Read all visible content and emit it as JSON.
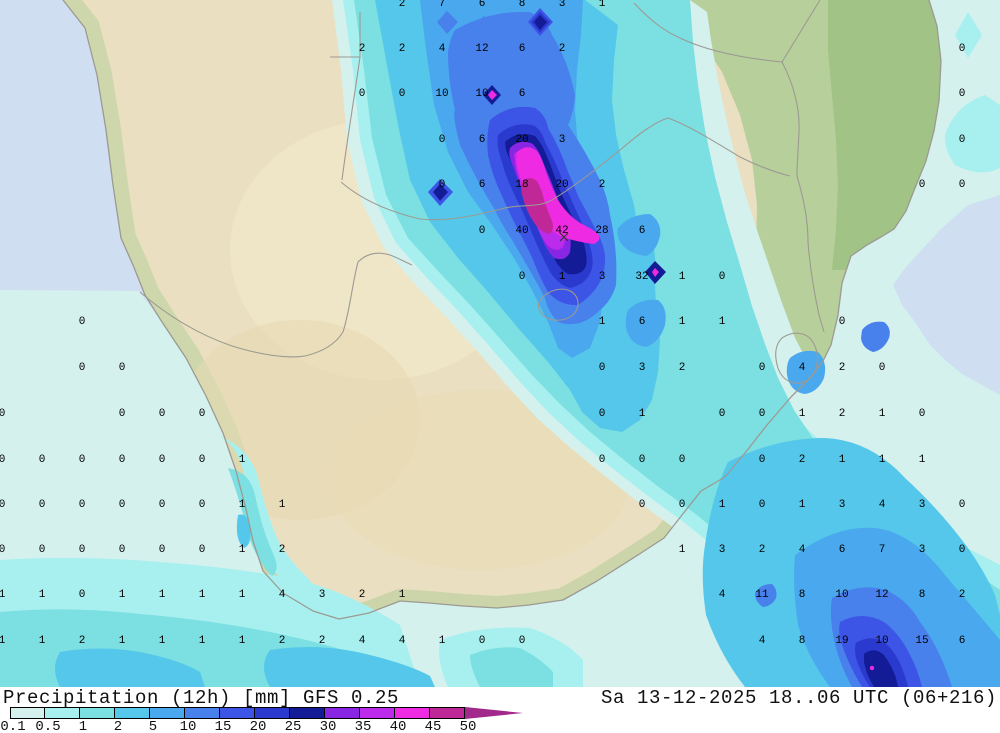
{
  "header": {
    "title": "Precipitation (12h) [mm] GFS 0.25",
    "datetime": "Sa 13-12-2025 18..06 UTC (06+216)"
  },
  "legend": {
    "unit": "mm",
    "labels": [
      "0.1",
      "0.5",
      "1",
      "2",
      "5",
      "10",
      "15",
      "20",
      "25",
      "30",
      "35",
      "40",
      "45",
      "50"
    ],
    "colors": [
      "#d4f1ee",
      "#a8f0ef",
      "#7cdfe1",
      "#55c7ea",
      "#4aa9ee",
      "#4880ec",
      "#3c55e6",
      "#2a3ace",
      "#131c96",
      "#8826e4",
      "#bc2aec",
      "#ee2ae2",
      "#bf2896"
    ],
    "overflow_color": "#a2288c"
  },
  "map": {
    "colors": {
      "ocean": "#cfdff1",
      "land": "#ebdfc1",
      "land_light": "#f2e9ce",
      "land_tan2": "#e3d5ad",
      "green": "#b7cf9b",
      "green_dark": "#9fc183",
      "border": "#9c9a92",
      "value_text": "#000000"
    },
    "values": [
      [
        402,
        2,
        "2"
      ],
      [
        442,
        2,
        "7"
      ],
      [
        482,
        2,
        "6"
      ],
      [
        522,
        2,
        "8"
      ],
      [
        562,
        2,
        "3"
      ],
      [
        602,
        2,
        "1"
      ],
      [
        362,
        47,
        "2"
      ],
      [
        402,
        47,
        "2"
      ],
      [
        442,
        47,
        "4"
      ],
      [
        482,
        47,
        "12"
      ],
      [
        522,
        47,
        "6"
      ],
      [
        562,
        47,
        "2"
      ],
      [
        962,
        47,
        "0"
      ],
      [
        362,
        92,
        "0"
      ],
      [
        402,
        92,
        "0"
      ],
      [
        442,
        92,
        "10"
      ],
      [
        482,
        92,
        "10"
      ],
      [
        522,
        92,
        "6"
      ],
      [
        962,
        92,
        "0"
      ],
      [
        442,
        138,
        "0"
      ],
      [
        482,
        138,
        "6"
      ],
      [
        522,
        138,
        "20"
      ],
      [
        562,
        138,
        "3"
      ],
      [
        962,
        138,
        "0"
      ],
      [
        442,
        183,
        "0"
      ],
      [
        482,
        183,
        "6"
      ],
      [
        522,
        183,
        "18"
      ],
      [
        562,
        183,
        "20"
      ],
      [
        602,
        183,
        "2"
      ],
      [
        922,
        183,
        "0"
      ],
      [
        962,
        183,
        "0"
      ],
      [
        482,
        229,
        "0"
      ],
      [
        522,
        229,
        "40"
      ],
      [
        562,
        229,
        "42"
      ],
      [
        602,
        229,
        "28"
      ],
      [
        642,
        229,
        "6"
      ],
      [
        522,
        275,
        "0"
      ],
      [
        562,
        275,
        "1"
      ],
      [
        602,
        275,
        "3"
      ],
      [
        642,
        275,
        "32"
      ],
      [
        682,
        275,
        "1"
      ],
      [
        722,
        275,
        "0"
      ],
      [
        82,
        320,
        "0"
      ],
      [
        602,
        320,
        "1"
      ],
      [
        642,
        320,
        "6"
      ],
      [
        682,
        320,
        "1"
      ],
      [
        722,
        320,
        "1"
      ],
      [
        842,
        320,
        "0"
      ],
      [
        82,
        366,
        "0"
      ],
      [
        122,
        366,
        "0"
      ],
      [
        602,
        366,
        "0"
      ],
      [
        642,
        366,
        "3"
      ],
      [
        682,
        366,
        "2"
      ],
      [
        762,
        366,
        "0"
      ],
      [
        802,
        366,
        "4"
      ],
      [
        842,
        366,
        "2"
      ],
      [
        882,
        366,
        "0"
      ],
      [
        2,
        412,
        "0"
      ],
      [
        122,
        412,
        "0"
      ],
      [
        162,
        412,
        "0"
      ],
      [
        202,
        412,
        "0"
      ],
      [
        602,
        412,
        "0"
      ],
      [
        642,
        412,
        "1"
      ],
      [
        722,
        412,
        "0"
      ],
      [
        762,
        412,
        "0"
      ],
      [
        802,
        412,
        "1"
      ],
      [
        842,
        412,
        "2"
      ],
      [
        882,
        412,
        "1"
      ],
      [
        922,
        412,
        "0"
      ],
      [
        2,
        458,
        "0"
      ],
      [
        42,
        458,
        "0"
      ],
      [
        82,
        458,
        "0"
      ],
      [
        122,
        458,
        "0"
      ],
      [
        162,
        458,
        "0"
      ],
      [
        202,
        458,
        "0"
      ],
      [
        242,
        458,
        "1"
      ],
      [
        602,
        458,
        "0"
      ],
      [
        642,
        458,
        "0"
      ],
      [
        682,
        458,
        "0"
      ],
      [
        762,
        458,
        "0"
      ],
      [
        802,
        458,
        "2"
      ],
      [
        842,
        458,
        "1"
      ],
      [
        882,
        458,
        "1"
      ],
      [
        922,
        458,
        "1"
      ],
      [
        2,
        503,
        "0"
      ],
      [
        42,
        503,
        "0"
      ],
      [
        82,
        503,
        "0"
      ],
      [
        122,
        503,
        "0"
      ],
      [
        162,
        503,
        "0"
      ],
      [
        202,
        503,
        "0"
      ],
      [
        242,
        503,
        "1"
      ],
      [
        282,
        503,
        "1"
      ],
      [
        642,
        503,
        "0"
      ],
      [
        682,
        503,
        "0"
      ],
      [
        722,
        503,
        "1"
      ],
      [
        762,
        503,
        "0"
      ],
      [
        802,
        503,
        "1"
      ],
      [
        842,
        503,
        "3"
      ],
      [
        882,
        503,
        "4"
      ],
      [
        922,
        503,
        "3"
      ],
      [
        962,
        503,
        "0"
      ],
      [
        2,
        548,
        "0"
      ],
      [
        42,
        548,
        "0"
      ],
      [
        82,
        548,
        "0"
      ],
      [
        122,
        548,
        "0"
      ],
      [
        162,
        548,
        "0"
      ],
      [
        202,
        548,
        "0"
      ],
      [
        242,
        548,
        "1"
      ],
      [
        282,
        548,
        "2"
      ],
      [
        682,
        548,
        "1"
      ],
      [
        722,
        548,
        "3"
      ],
      [
        762,
        548,
        "2"
      ],
      [
        802,
        548,
        "4"
      ],
      [
        842,
        548,
        "6"
      ],
      [
        882,
        548,
        "7"
      ],
      [
        922,
        548,
        "3"
      ],
      [
        962,
        548,
        "0"
      ],
      [
        2,
        593,
        "1"
      ],
      [
        42,
        593,
        "1"
      ],
      [
        82,
        593,
        "0"
      ],
      [
        122,
        593,
        "1"
      ],
      [
        162,
        593,
        "1"
      ],
      [
        202,
        593,
        "1"
      ],
      [
        242,
        593,
        "1"
      ],
      [
        282,
        593,
        "4"
      ],
      [
        322,
        593,
        "3"
      ],
      [
        362,
        593,
        "2"
      ],
      [
        402,
        593,
        "1"
      ],
      [
        722,
        593,
        "4"
      ],
      [
        762,
        593,
        "11"
      ],
      [
        802,
        593,
        "8"
      ],
      [
        842,
        593,
        "10"
      ],
      [
        882,
        593,
        "12"
      ],
      [
        922,
        593,
        "8"
      ],
      [
        962,
        593,
        "2"
      ],
      [
        2,
        639,
        "1"
      ],
      [
        42,
        639,
        "1"
      ],
      [
        82,
        639,
        "2"
      ],
      [
        122,
        639,
        "1"
      ],
      [
        162,
        639,
        "1"
      ],
      [
        202,
        639,
        "1"
      ],
      [
        242,
        639,
        "1"
      ],
      [
        282,
        639,
        "2"
      ],
      [
        322,
        639,
        "2"
      ],
      [
        362,
        639,
        "4"
      ],
      [
        402,
        639,
        "4"
      ],
      [
        442,
        639,
        "1"
      ],
      [
        482,
        639,
        "0"
      ],
      [
        522,
        639,
        "0"
      ],
      [
        762,
        639,
        "4"
      ],
      [
        802,
        639,
        "8"
      ],
      [
        842,
        639,
        "19"
      ],
      [
        882,
        639,
        "10"
      ],
      [
        922,
        639,
        "15"
      ],
      [
        962,
        639,
        "6"
      ]
    ]
  }
}
